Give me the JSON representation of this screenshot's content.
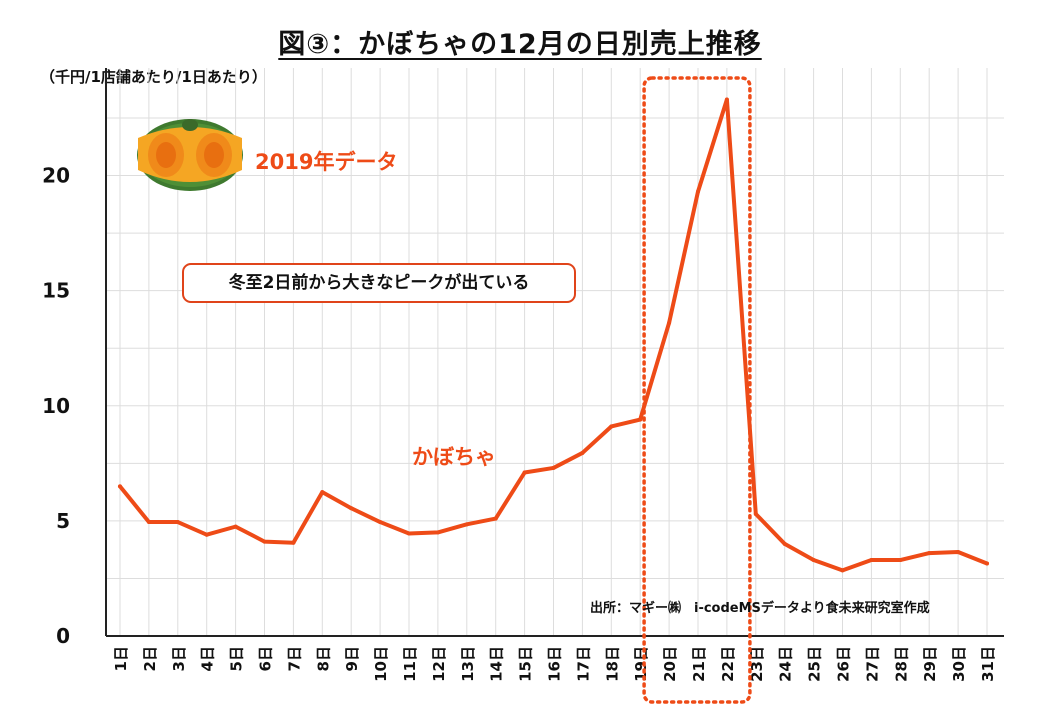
{
  "title": "図③：かぼちゃの12月の日別売上推移",
  "unit_label": "（千円/1店舗あたり/1日あたり）",
  "source": "出所：マギー㈱　i-codeMSデータより食未来研究室作成",
  "year_label": "2019年データ",
  "annotation": "冬至2日前から大きなピークが出ている",
  "colors": {
    "line": "#ee4b17",
    "highlight": "#ee4b17",
    "grid": "#dddddd"
  },
  "chart_data": {
    "type": "line",
    "title": "図③：かぼちゃの12月の日別売上推移",
    "ylabel": "（千円/1店舗あたり/1日あたり）",
    "xlabel": "",
    "ylim": [
      0,
      25
    ],
    "yticks": [
      0,
      5,
      10,
      15,
      20
    ],
    "grid": true,
    "categories": [
      "1日",
      "2日",
      "3日",
      "4日",
      "5日",
      "6日",
      "7日",
      "8日",
      "9日",
      "10日",
      "11日",
      "12日",
      "13日",
      "14日",
      "15日",
      "16日",
      "17日",
      "18日",
      "19日",
      "20日",
      "21日",
      "22日",
      "23日",
      "24日",
      "25日",
      "26日",
      "27日",
      "28日",
      "29日",
      "30日",
      "31日"
    ],
    "series": [
      {
        "name": "かぼちゃ",
        "values": [
          6.5,
          4.95,
          4.95,
          4.4,
          4.75,
          4.1,
          4.05,
          6.25,
          5.55,
          4.95,
          4.45,
          4.5,
          4.85,
          5.1,
          7.1,
          7.3,
          7.95,
          9.1,
          9.4,
          13.6,
          19.3,
          23.3,
          5.3,
          4.0,
          3.3,
          2.85,
          3.3,
          3.3,
          3.6,
          3.65,
          3.15
        ]
      }
    ],
    "highlight": {
      "from": "20日",
      "to": "22日",
      "style": "dotted-box"
    }
  }
}
